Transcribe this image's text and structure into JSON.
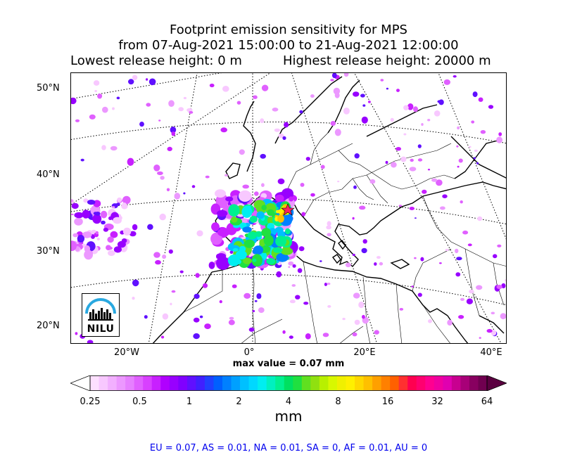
{
  "title": {
    "line1": "Footprint emission sensitivity for MPS",
    "line2": "from 07-Aug-2021 15:00:00 to 21-Aug-2021 12:00:00",
    "line3_left": "Lowest release height: 0 m",
    "line3_right": "Highest release height: 20000 m"
  },
  "map": {
    "lat_labels": [
      "50°N",
      "40°N",
      "30°N",
      "20°N"
    ],
    "lon_labels": [
      "20°W",
      "0°",
      "20°E",
      "40°E"
    ],
    "release_marker": "star",
    "logo_text": "NILU"
  },
  "max_value_text": "max value = 0.07 mm",
  "colorbar": {
    "ticks": [
      "0.25",
      "0.5",
      "1",
      "2",
      "4",
      "8",
      "16",
      "32",
      "64"
    ],
    "unit": "mm",
    "colors": [
      "#fde0ff",
      "#f8c8ff",
      "#f2b0ff",
      "#ec98ff",
      "#e680ff",
      "#e060ff",
      "#d840ff",
      "#c820ff",
      "#b000ff",
      "#9800ff",
      "#8000ff",
      "#6010ff",
      "#4020ff",
      "#2040ff",
      "#0060ff",
      "#0080ff",
      "#00a0ff",
      "#00c0ff",
      "#00d8ff",
      "#00eef0",
      "#00f0c0",
      "#00f090",
      "#00e060",
      "#20e040",
      "#60e020",
      "#90e010",
      "#b8f000",
      "#d8f800",
      "#f0f000",
      "#fff000",
      "#ffd800",
      "#ffc000",
      "#ffa000",
      "#ff8000",
      "#ff6000",
      "#ff3030",
      "#ff0050",
      "#ff0070",
      "#ff0090",
      "#f000a0",
      "#e000b0",
      "#c80090",
      "#a80078",
      "#880060",
      "#700050"
    ]
  },
  "regions_text": "EU = 0.07,  AS = 0.01,  NA = 0.01,  SA = 0,  AF = 0.01,  AU = 0"
}
